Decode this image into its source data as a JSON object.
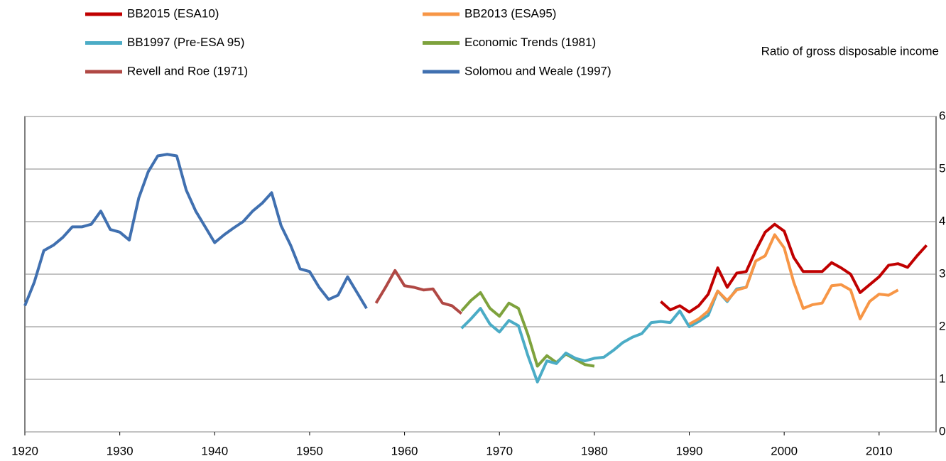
{
  "chart_data": {
    "type": "line",
    "ylabel": "Ratio of gross disposable income",
    "xlim": [
      1920,
      2016
    ],
    "xticks": [
      1920,
      1930,
      1940,
      1950,
      1960,
      1970,
      1980,
      1990,
      2000,
      2010
    ],
    "ylim": [
      0,
      6
    ],
    "yticks": [
      0,
      1,
      2,
      3,
      4,
      5,
      6
    ],
    "grid": true,
    "series": [
      {
        "name": "BB2015 (ESA10)",
        "color": "#c00000",
        "x": [
          1987,
          1988,
          1989,
          1990,
          1991,
          1992,
          1993,
          1994,
          1995,
          1996,
          1997,
          1998,
          1999,
          2000,
          2001,
          2002,
          2003,
          2004,
          2005,
          2006,
          2007,
          2008,
          2009,
          2010,
          2011,
          2012,
          2013,
          2014,
          2015
        ],
        "values": [
          2.48,
          2.32,
          2.4,
          2.28,
          2.4,
          2.62,
          3.12,
          2.75,
          3.02,
          3.05,
          3.45,
          3.8,
          3.95,
          3.82,
          3.32,
          3.05,
          3.05,
          3.05,
          3.22,
          3.12,
          3.0,
          2.65,
          2.8,
          2.95,
          3.17,
          3.2,
          3.13,
          3.35,
          3.55
        ]
      },
      {
        "name": "BB2013 (ESA95)",
        "color": "#f79646",
        "x": [
          1990,
          1991,
          1992,
          1993,
          1994,
          1995,
          1996,
          1997,
          1998,
          1999,
          2000,
          2001,
          2002,
          2003,
          2004,
          2005,
          2006,
          2007,
          2008,
          2009,
          2010,
          2011,
          2012
        ],
        "values": [
          2.05,
          2.15,
          2.3,
          2.68,
          2.5,
          2.7,
          2.75,
          3.25,
          3.35,
          3.75,
          3.5,
          2.85,
          2.35,
          2.42,
          2.45,
          2.78,
          2.8,
          2.7,
          2.15,
          2.48,
          2.62,
          2.6,
          2.7
        ]
      },
      {
        "name": "BB1997 (Pre-ESA  95)",
        "color": "#4bacc6",
        "x": [
          1966,
          1967,
          1968,
          1969,
          1970,
          1971,
          1972,
          1973,
          1974,
          1975,
          1976,
          1977,
          1978,
          1979,
          1980,
          1981,
          1982,
          1983,
          1984,
          1985,
          1986,
          1987,
          1988,
          1989,
          1990,
          1991,
          1992,
          1993,
          1994,
          1995,
          1996,
          1997
        ],
        "values": [
          1.97,
          2.15,
          2.35,
          2.05,
          1.9,
          2.12,
          2.02,
          1.45,
          0.95,
          1.35,
          1.3,
          1.5,
          1.4,
          1.35,
          1.4,
          1.42,
          1.55,
          1.7,
          1.8,
          1.87,
          2.08,
          2.1,
          2.08,
          2.3,
          2.0,
          2.1,
          2.22,
          2.68,
          2.48,
          2.72,
          2.75,
          3.25
        ]
      },
      {
        "name": "Economic Trends (1981)",
        "color": "#7ea23d",
        "x": [
          1966,
          1967,
          1968,
          1969,
          1970,
          1971,
          1972,
          1973,
          1974,
          1975,
          1976,
          1977,
          1978,
          1979,
          1980
        ],
        "values": [
          2.3,
          2.5,
          2.65,
          2.35,
          2.2,
          2.45,
          2.35,
          1.85,
          1.25,
          1.45,
          1.32,
          1.48,
          1.38,
          1.28,
          1.25
        ]
      },
      {
        "name": "Revell and Roe (1971)",
        "color": "#b04844",
        "x": [
          1957,
          1958,
          1959,
          1960,
          1961,
          1962,
          1963,
          1964,
          1965,
          1966
        ],
        "values": [
          2.45,
          2.75,
          3.07,
          2.78,
          2.75,
          2.7,
          2.72,
          2.45,
          2.4,
          2.25
        ]
      },
      {
        "name": "Solomou and Weale (1997)",
        "color": "#4070b0",
        "x": [
          1920,
          1921,
          1922,
          1923,
          1924,
          1925,
          1926,
          1927,
          1928,
          1929,
          1930,
          1931,
          1932,
          1933,
          1934,
          1935,
          1936,
          1937,
          1938,
          1939,
          1940,
          1941,
          1942,
          1943,
          1944,
          1945,
          1946,
          1947,
          1948,
          1949,
          1950,
          1951,
          1952,
          1953,
          1954,
          1955,
          1956
        ],
        "values": [
          2.4,
          2.85,
          3.45,
          3.55,
          3.7,
          3.9,
          3.9,
          3.95,
          4.2,
          3.85,
          3.8,
          3.65,
          4.45,
          4.95,
          5.25,
          5.28,
          5.25,
          4.6,
          4.2,
          3.9,
          3.6,
          3.75,
          3.88,
          4.0,
          4.2,
          4.35,
          4.55,
          3.92,
          3.55,
          3.1,
          3.05,
          2.75,
          2.52,
          2.6,
          2.95,
          2.65,
          2.35
        ]
      }
    ]
  }
}
